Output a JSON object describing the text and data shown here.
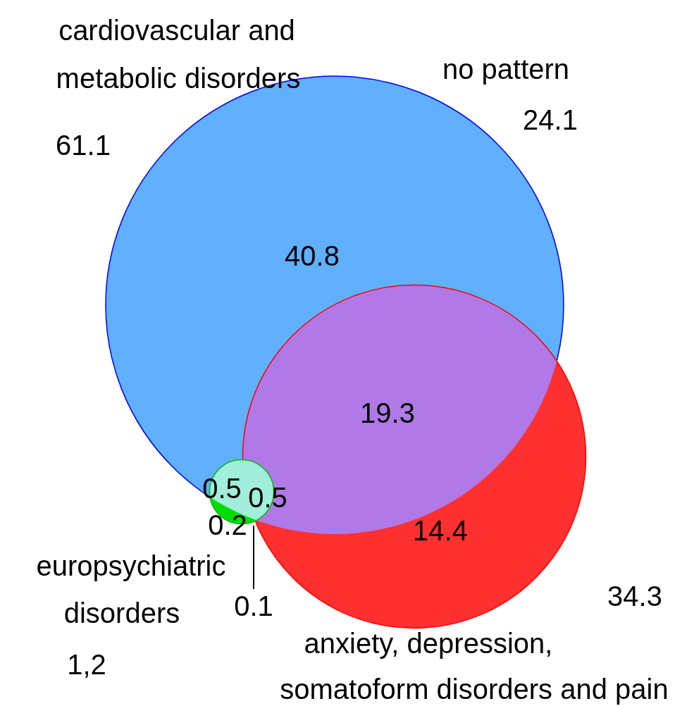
{
  "chart_data": {
    "type": "other",
    "categories": [
      "cardiovascular and metabolic disorders",
      "anxiety, depression, somatoform disorders and pain",
      "europsychiatric disorders",
      "no pattern"
    ],
    "values": [
      61.1,
      34.3,
      1.2,
      24.1
    ],
    "value_labels": [
      "61.1",
      "34.3",
      "1,2",
      "24.1"
    ],
    "colors": [
      "#60b0ff",
      "#ff3030",
      "#00dd00",
      null
    ],
    "annotations": [
      "40.8",
      "19.3",
      "14.4",
      "0.5",
      "0.5",
      "0.2",
      "0.1"
    ]
  }
}
